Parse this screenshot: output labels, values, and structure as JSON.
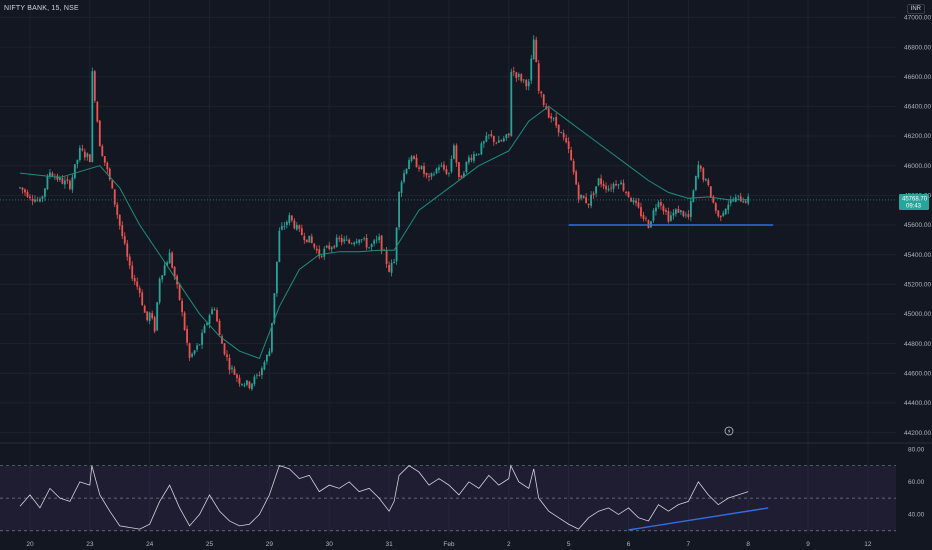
{
  "header": {
    "symbol": "NIFTY BANK, 15, NSE",
    "currency": "INR"
  },
  "price_tag": {
    "price": "45768.70",
    "countdown": "09:43"
  },
  "colors": {
    "background": "#131722",
    "bull": "#26a69a",
    "bear": "#ef5350",
    "ma_line": "#1c8f7c",
    "trendline": "#2f6fe0",
    "rsi_line": "#d1d4dc",
    "rsi_band": "#7e57c2"
  },
  "flag_icon": "lightning-icon",
  "chart_data": [
    {
      "type": "candlestick",
      "title": "",
      "y_ticks": [
        44200,
        44400,
        44600,
        44800,
        45000,
        45200,
        45400,
        45600,
        45800,
        46000,
        46200,
        46400,
        46600,
        46800,
        47000
      ],
      "y_tick_labels": [
        "44200.00",
        "44400.00",
        "44600.00",
        "44800.00",
        "45000.00",
        "45200.00",
        "45400.00",
        "45600.00",
        "45800.00",
        "46000.00",
        "46200.00",
        "46400.00",
        "46600.00",
        "46800.00",
        "47000.00"
      ],
      "ylim": [
        44150,
        47050
      ],
      "x_tick_labels": [
        "20",
        "23",
        "24",
        "25",
        "29",
        "30",
        "31",
        "Feb",
        "2",
        "5",
        "6",
        "7",
        "8",
        "9",
        "12"
      ],
      "x_tick_positions": [
        1,
        7,
        13,
        19,
        25,
        31,
        37,
        43,
        49,
        55,
        61,
        67,
        73,
        79,
        85
      ],
      "price_path": [
        [
          0,
          45850
        ],
        [
          1,
          45800
        ],
        [
          2,
          45750
        ],
        [
          3,
          45960
        ],
        [
          4,
          45900
        ],
        [
          5,
          45870
        ],
        [
          6,
          46100
        ],
        [
          7,
          46050
        ],
        [
          7.2,
          46650
        ],
        [
          8,
          46150
        ],
        [
          9,
          45900
        ],
        [
          10,
          45600
        ],
        [
          11,
          45300
        ],
        [
          12,
          45150
        ],
        [
          12.7,
          44950
        ],
        [
          13,
          45000
        ],
        [
          13.5,
          44900
        ],
        [
          14,
          45250
        ],
        [
          15,
          45400
        ],
        [
          16,
          45100
        ],
        [
          16.5,
          44900
        ],
        [
          17,
          44700
        ],
        [
          18,
          44800
        ],
        [
          19,
          45000
        ],
        [
          19.5,
          45050
        ],
        [
          20,
          44850
        ],
        [
          21,
          44650
        ],
        [
          22,
          44550
        ],
        [
          23,
          44520
        ],
        [
          24,
          44600
        ],
        [
          25,
          44750
        ],
        [
          25.5,
          45150
        ],
        [
          26,
          45550
        ],
        [
          27,
          45650
        ],
        [
          28,
          45550
        ],
        [
          29,
          45500
        ],
        [
          30,
          45400
        ],
        [
          31,
          45450
        ],
        [
          32,
          45500
        ],
        [
          33,
          45480
        ],
        [
          34,
          45520
        ],
        [
          35,
          45450
        ],
        [
          36,
          45500
        ],
        [
          37,
          45300
        ],
        [
          37.5,
          45350
        ],
        [
          38,
          45850
        ],
        [
          39,
          46050
        ],
        [
          40,
          46000
        ],
        [
          41,
          45900
        ],
        [
          42,
          46000
        ],
        [
          43,
          45950
        ],
        [
          43.5,
          46150
        ],
        [
          44,
          45900
        ],
        [
          45,
          46050
        ],
        [
          46,
          46100
        ],
        [
          47,
          46200
        ],
        [
          48,
          46150
        ],
        [
          49,
          46200
        ],
        [
          49.2,
          46650
        ],
        [
          50,
          46600
        ],
        [
          51,
          46550
        ],
        [
          51.5,
          46850
        ],
        [
          52,
          46500
        ],
        [
          53,
          46350
        ],
        [
          54,
          46250
        ],
        [
          55,
          46100
        ],
        [
          56,
          45800
        ],
        [
          57,
          45750
        ],
        [
          58,
          45900
        ],
        [
          59,
          45850
        ],
        [
          60,
          45900
        ],
        [
          61,
          45800
        ],
        [
          62,
          45700
        ],
        [
          63,
          45600
        ],
        [
          64,
          45780
        ],
        [
          65,
          45650
        ],
        [
          66,
          45700
        ],
        [
          67,
          45650
        ],
        [
          68,
          46000
        ],
        [
          69,
          45850
        ],
        [
          70,
          45650
        ],
        [
          71,
          45750
        ],
        [
          72,
          45780
        ],
        [
          73,
          45768
        ]
      ],
      "moving_average": [
        [
          0,
          45950
        ],
        [
          4,
          45920
        ],
        [
          8,
          46000
        ],
        [
          10,
          45850
        ],
        [
          12,
          45600
        ],
        [
          14,
          45400
        ],
        [
          16,
          45200
        ],
        [
          18,
          45000
        ],
        [
          20,
          44850
        ],
        [
          22,
          44750
        ],
        [
          24,
          44700
        ],
        [
          26,
          45050
        ],
        [
          28,
          45300
        ],
        [
          30,
          45400
        ],
        [
          32,
          45420
        ],
        [
          34,
          45420
        ],
        [
          36,
          45430
        ],
        [
          37.5,
          45430
        ],
        [
          40,
          45700
        ],
        [
          43,
          45850
        ],
        [
          46,
          46000
        ],
        [
          49,
          46100
        ],
        [
          51,
          46300
        ],
        [
          53,
          46400
        ],
        [
          55,
          46300
        ],
        [
          57,
          46200
        ],
        [
          59,
          46100
        ],
        [
          61,
          46000
        ],
        [
          63,
          45900
        ],
        [
          65,
          45820
        ],
        [
          67,
          45780
        ],
        [
          69,
          45790
        ],
        [
          71,
          45770
        ],
        [
          73,
          45770
        ]
      ],
      "horizontal_level": {
        "value": 45600,
        "from_x": 55,
        "to_x": 75.5
      },
      "last_price": 45768.7
    },
    {
      "type": "line",
      "title": "",
      "series": [
        {
          "name": "",
          "values_note": "RSI oscillator"
        }
      ],
      "y_ticks": [
        40,
        60,
        80
      ],
      "y_tick_labels": [
        "40.00",
        "60.00",
        "80.00"
      ],
      "ylim": [
        28,
        82
      ],
      "band": [
        30,
        70
      ],
      "midline": 50,
      "rsi_path": [
        [
          0,
          45
        ],
        [
          1,
          52
        ],
        [
          2,
          44
        ],
        [
          3,
          56
        ],
        [
          4,
          50
        ],
        [
          5,
          48
        ],
        [
          6,
          60
        ],
        [
          7,
          58
        ],
        [
          7.2,
          70
        ],
        [
          8,
          52
        ],
        [
          9,
          42
        ],
        [
          10,
          33
        ],
        [
          11,
          32
        ],
        [
          12,
          31
        ],
        [
          13,
          34
        ],
        [
          14,
          48
        ],
        [
          15,
          58
        ],
        [
          16,
          44
        ],
        [
          17,
          33
        ],
        [
          18,
          40
        ],
        [
          19,
          52
        ],
        [
          20,
          42
        ],
        [
          21,
          36
        ],
        [
          22,
          33
        ],
        [
          23,
          34
        ],
        [
          24,
          40
        ],
        [
          25,
          52
        ],
        [
          26,
          70
        ],
        [
          27,
          68
        ],
        [
          28,
          62
        ],
        [
          29,
          64
        ],
        [
          30,
          54
        ],
        [
          31,
          58
        ],
        [
          32,
          56
        ],
        [
          33,
          60
        ],
        [
          34,
          54
        ],
        [
          35,
          56
        ],
        [
          36,
          50
        ],
        [
          37,
          42
        ],
        [
          37.5,
          48
        ],
        [
          38,
          64
        ],
        [
          39,
          70
        ],
        [
          40,
          66
        ],
        [
          41,
          58
        ],
        [
          42,
          62
        ],
        [
          43,
          58
        ],
        [
          44,
          52
        ],
        [
          45,
          60
        ],
        [
          46,
          56
        ],
        [
          47,
          64
        ],
        [
          48,
          58
        ],
        [
          49,
          62
        ],
        [
          49.2,
          70
        ],
        [
          50,
          60
        ],
        [
          51,
          56
        ],
        [
          51.5,
          68
        ],
        [
          52,
          50
        ],
        [
          53,
          42
        ],
        [
          54,
          38
        ],
        [
          55,
          34
        ],
        [
          56,
          31
        ],
        [
          57,
          38
        ],
        [
          58,
          42
        ],
        [
          59,
          44
        ],
        [
          60,
          40
        ],
        [
          61,
          44
        ],
        [
          62,
          38
        ],
        [
          63,
          36
        ],
        [
          64,
          46
        ],
        [
          65,
          42
        ],
        [
          66,
          46
        ],
        [
          67,
          48
        ],
        [
          68,
          60
        ],
        [
          69,
          52
        ],
        [
          70,
          46
        ],
        [
          71,
          50
        ],
        [
          72,
          52
        ],
        [
          73,
          54
        ]
      ],
      "trendline": {
        "from": [
          61,
          30.5
        ],
        "to": [
          75,
          44
        ]
      }
    }
  ]
}
